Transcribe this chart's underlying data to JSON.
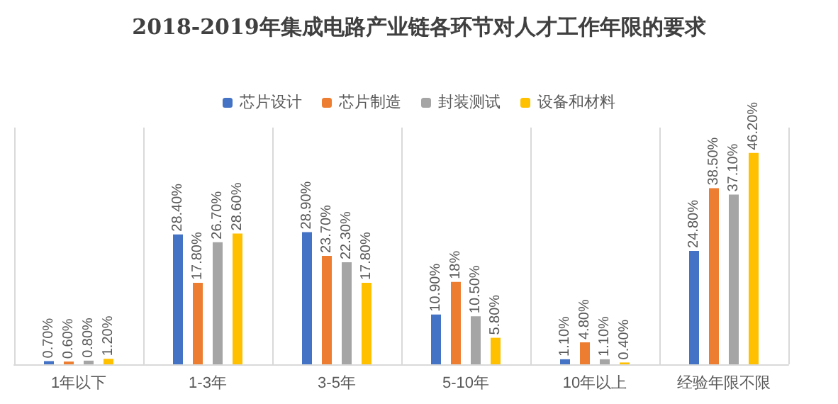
{
  "chart_data": {
    "type": "bar",
    "title": "2018-2019年集成电路产业链各环节对人才工作年限的要求",
    "categories": [
      "1年以下",
      "1-3年",
      "3-5年",
      "5-10年",
      "10年以上",
      "经验年限不限"
    ],
    "series": [
      {
        "name": "芯片设计",
        "color": "#4472c4",
        "values": [
          0.7,
          28.4,
          28.9,
          10.9,
          1.1,
          24.8
        ],
        "value_labels": [
          "0.70%",
          "28.40%",
          "28.90%",
          "10.90%",
          "1.10%",
          "24.80%"
        ]
      },
      {
        "name": "芯片制造",
        "color": "#ed7d31",
        "values": [
          0.6,
          17.8,
          23.7,
          18,
          4.8,
          38.5
        ],
        "value_labels": [
          "0.60%",
          "17.80%",
          "23.70%",
          "18%",
          "4.80%",
          "38.50%"
        ]
      },
      {
        "name": "封装测试",
        "color": "#a5a5a5",
        "values": [
          0.8,
          26.7,
          22.3,
          10.5,
          1.1,
          37.1
        ],
        "value_labels": [
          "0.80%",
          "26.70%",
          "22.30%",
          "10.50%",
          "1.10%",
          "37.10%"
        ]
      },
      {
        "name": "设备和材料",
        "color": "#ffc000",
        "values": [
          1.2,
          28.6,
          17.8,
          5.8,
          0.4,
          46.2
        ],
        "value_labels": [
          "1.20%",
          "28.60%",
          "17.80%",
          "5.80%",
          "0.40%",
          "46.20%"
        ]
      }
    ],
    "legend": "top",
    "grid": "x"
  }
}
